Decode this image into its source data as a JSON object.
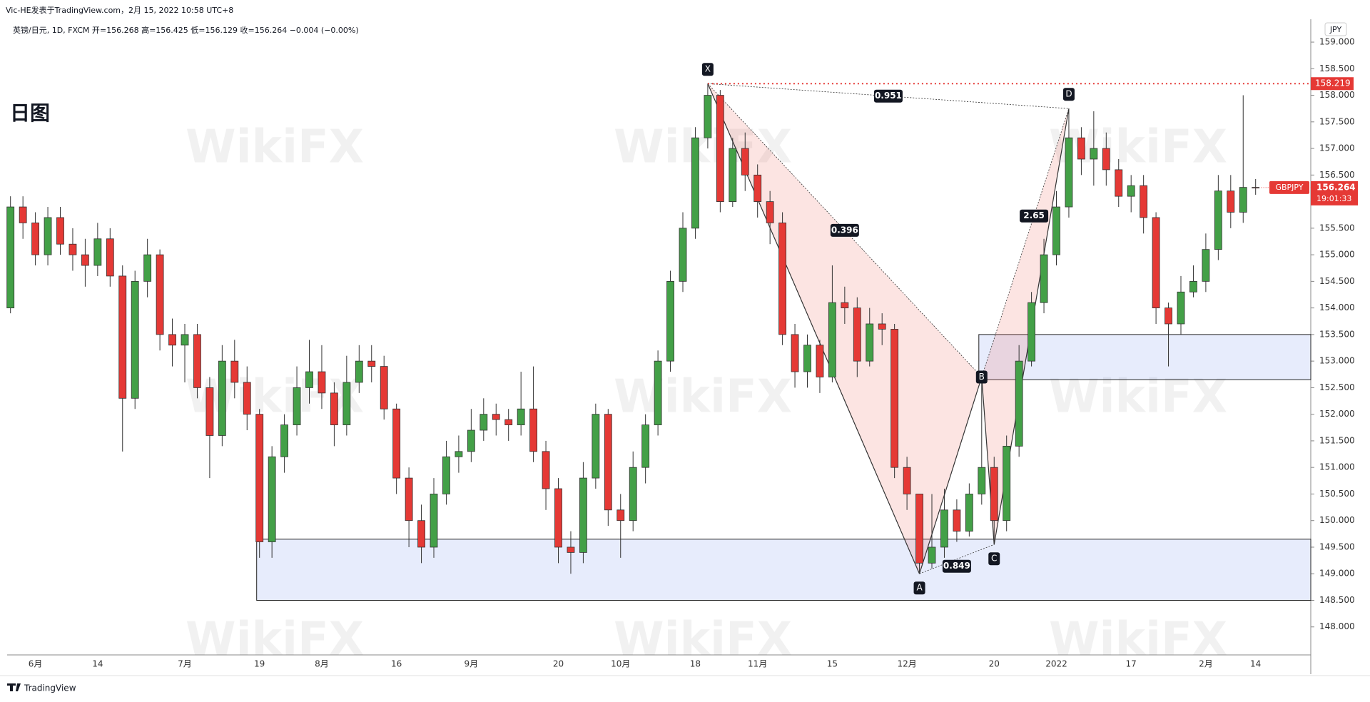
{
  "header": {
    "author": "Vic-HE发表于TradingView.com，2月 15, 2022 10:58 UTC+8",
    "legend": "英镑/日元, 1D, FXCM  开=156.268  高=156.425  低=156.129  收=156.264  −0.004 (−0.00%)",
    "note": "日图",
    "currency": "JPY",
    "footer": "TradingView",
    "watermark": "WikiFX"
  },
  "chart_data": {
    "type": "candlestick",
    "symbol": "GBPJPY",
    "countdown": "19:01:33",
    "up_color": "#43a047",
    "down_color": "#e53935",
    "categories": [
      null,
      null,
      "6月",
      null,
      null,
      null,
      null,
      "14",
      null,
      null,
      null,
      null,
      null,
      null,
      "7月",
      null,
      null,
      null,
      null,
      null,
      "19",
      null,
      null,
      null,
      null,
      "8月",
      null,
      null,
      null,
      null,
      null,
      "16",
      null,
      null,
      null,
      null,
      null,
      "9月",
      null,
      null,
      null,
      null,
      null,
      null,
      "20",
      null,
      null,
      null,
      null,
      "10月",
      null,
      null,
      null,
      null,
      null,
      "18",
      null,
      null,
      null,
      null,
      "11月",
      null,
      null,
      null,
      null,
      null,
      "15",
      null,
      null,
      null,
      null,
      null,
      "12月",
      null,
      null,
      null,
      null,
      null,
      null,
      "20",
      null,
      null,
      null,
      null,
      "2022",
      null,
      null,
      null,
      null,
      null,
      "17",
      null,
      null,
      null,
      null,
      null,
      "2月",
      null,
      null,
      null,
      "14"
    ],
    "open": [
      154.0,
      155.9,
      155.6,
      155.0,
      155.7,
      155.2,
      155.0,
      154.8,
      155.3,
      154.6,
      152.3,
      154.5,
      155.0,
      153.5,
      153.3,
      153.5,
      152.5,
      151.6,
      153.0,
      152.6,
      152.0,
      149.6,
      151.2,
      151.8,
      152.5,
      152.8,
      152.4,
      151.8,
      152.6,
      153.0,
      152.9,
      152.1,
      150.8,
      150.0,
      149.5,
      150.5,
      151.2,
      151.3,
      151.7,
      152.0,
      151.9,
      151.8,
      152.1,
      151.3,
      150.6,
      149.5,
      149.4,
      150.8,
      152.0,
      150.2,
      150.0,
      151.0,
      151.8,
      153.0,
      154.5,
      155.5,
      157.2,
      158.0,
      156.0,
      157.0,
      156.5,
      156.0,
      155.6,
      153.5,
      152.8,
      153.3,
      152.7,
      154.1,
      154.0,
      153.0,
      153.7,
      153.6,
      151.0,
      150.5,
      149.2,
      149.5,
      150.2,
      149.8,
      150.5,
      151.0,
      150.0,
      151.4,
      153.0,
      154.1,
      155.0,
      155.9,
      157.2,
      156.8,
      157.0,
      156.6,
      156.1,
      156.3,
      155.7,
      154.0,
      153.7,
      154.3,
      154.5,
      155.1,
      156.2,
      155.8,
      156.268
    ],
    "high": [
      156.1,
      156.1,
      155.8,
      155.9,
      155.9,
      155.5,
      155.3,
      155.6,
      155.5,
      154.8,
      154.7,
      155.3,
      155.1,
      153.8,
      153.7,
      153.7,
      152.7,
      153.3,
      153.4,
      152.9,
      152.1,
      151.4,
      152.0,
      152.9,
      153.4,
      153.3,
      152.6,
      153.1,
      153.3,
      153.3,
      153.1,
      152.2,
      151.0,
      150.3,
      150.8,
      151.5,
      151.6,
      152.1,
      152.3,
      152.2,
      152.1,
      152.8,
      152.9,
      151.5,
      150.8,
      149.8,
      151.1,
      152.2,
      152.1,
      150.5,
      151.3,
      152.0,
      153.2,
      154.7,
      155.8,
      157.4,
      158.219,
      158.1,
      157.2,
      157.3,
      156.7,
      156.2,
      155.8,
      153.7,
      153.5,
      153.4,
      154.8,
      154.4,
      154.2,
      154.0,
      153.9,
      153.7,
      151.2,
      150.5,
      150.5,
      150.6,
      150.4,
      150.7,
      152.7,
      151.2,
      151.6,
      153.3,
      154.3,
      155.3,
      156.2,
      157.75,
      157.4,
      157.7,
      157.3,
      156.8,
      156.5,
      156.5,
      155.8,
      154.1,
      154.6,
      154.8,
      155.4,
      156.5,
      156.5,
      158.0,
      156.425
    ],
    "low": [
      153.9,
      155.3,
      154.8,
      154.8,
      155.0,
      154.7,
      154.4,
      154.6,
      154.4,
      151.3,
      152.1,
      154.2,
      153.2,
      152.9,
      152.6,
      152.3,
      150.8,
      151.4,
      152.3,
      151.7,
      149.3,
      149.3,
      150.9,
      151.6,
      152.2,
      152.1,
      151.4,
      151.6,
      152.4,
      152.6,
      151.9,
      150.5,
      149.5,
      149.2,
      149.3,
      150.3,
      150.9,
      151.1,
      151.5,
      151.6,
      151.5,
      151.6,
      151.1,
      150.2,
      149.2,
      149.0,
      149.2,
      150.6,
      149.9,
      149.3,
      149.8,
      150.7,
      151.6,
      152.8,
      154.3,
      155.3,
      157.0,
      155.8,
      155.9,
      156.2,
      155.7,
      155.2,
      153.3,
      152.5,
      152.5,
      152.4,
      152.6,
      153.7,
      152.7,
      152.9,
      153.3,
      150.8,
      150.2,
      149.0,
      149.1,
      149.3,
      149.6,
      149.7,
      150.3,
      149.55,
      149.8,
      151.2,
      152.9,
      153.9,
      154.8,
      155.7,
      156.5,
      156.3,
      156.3,
      155.9,
      155.8,
      155.4,
      153.7,
      152.9,
      153.5,
      154.2,
      154.3,
      154.9,
      155.5,
      155.6,
      156.129
    ],
    "close": [
      155.9,
      155.6,
      155.0,
      155.7,
      155.2,
      155.0,
      154.8,
      155.3,
      154.6,
      152.3,
      154.5,
      155.0,
      153.5,
      153.3,
      153.5,
      152.5,
      151.6,
      153.0,
      152.6,
      152.0,
      149.6,
      151.2,
      151.8,
      152.5,
      152.8,
      152.4,
      151.8,
      152.6,
      153.0,
      152.9,
      152.1,
      150.8,
      150.0,
      149.5,
      150.5,
      151.2,
      151.3,
      151.7,
      152.0,
      151.9,
      151.8,
      152.1,
      151.3,
      150.6,
      149.5,
      149.4,
      150.8,
      152.0,
      150.2,
      150.0,
      151.0,
      151.8,
      153.0,
      154.5,
      155.5,
      157.2,
      158.0,
      156.0,
      157.0,
      156.5,
      156.0,
      155.6,
      153.5,
      152.8,
      153.3,
      152.7,
      154.1,
      154.0,
      153.0,
      153.7,
      153.6,
      151.0,
      150.5,
      149.2,
      149.5,
      150.2,
      149.8,
      150.5,
      151.0,
      150.0,
      151.4,
      153.0,
      154.1,
      155.0,
      155.9,
      157.2,
      156.8,
      157.0,
      156.6,
      156.1,
      156.3,
      155.7,
      154.0,
      153.7,
      154.3,
      154.5,
      155.1,
      156.2,
      155.8,
      156.268,
      156.264
    ],
    "ylim": [
      147.5,
      159.43
    ],
    "yticks": [
      {
        "value": 148,
        "label": "148.000"
      },
      {
        "value": 148.5,
        "label": "148.500"
      },
      {
        "value": 149,
        "label": "149.000"
      },
      {
        "value": 149.5,
        "label": "149.500"
      },
      {
        "value": 150,
        "label": "150.000"
      },
      {
        "value": 150.5,
        "label": "150.500"
      },
      {
        "value": 151,
        "label": "151.000"
      },
      {
        "value": 151.5,
        "label": "151.500"
      },
      {
        "value": 152,
        "label": "152.000"
      },
      {
        "value": 152.5,
        "label": "152.500"
      },
      {
        "value": 153,
        "label": "153.000"
      },
      {
        "value": 153.5,
        "label": "153.500"
      },
      {
        "value": 154,
        "label": "154.000"
      },
      {
        "value": 154.5,
        "label": "154.500"
      },
      {
        "value": 155,
        "label": "155.000"
      },
      {
        "value": 155.5,
        "label": "155.500"
      },
      {
        "value": 156,
        "label": "156.000"
      },
      {
        "value": 156.5,
        "label": "156.500"
      },
      {
        "value": 157,
        "label": "157.000"
      },
      {
        "value": 157.5,
        "label": "157.500"
      },
      {
        "value": 158,
        "label": "158.000"
      },
      {
        "value": 158.5,
        "label": "158.500"
      },
      {
        "value": 159,
        "label": "159.000"
      }
    ],
    "last_price": {
      "value": 156.264,
      "label": "156.264"
    },
    "high_line": {
      "value": 158.219,
      "label": "158.219"
    },
    "zones": [
      {
        "start": 20,
        "top": 149.65,
        "bottom": 148.5
      },
      {
        "start": 78,
        "top": 153.5,
        "bottom": 152.65
      }
    ],
    "pattern": {
      "points": [
        {
          "label": "X",
          "index": 56,
          "price": 158.219
        },
        {
          "label": "A",
          "index": 73,
          "price": 149.0
        },
        {
          "label": "B",
          "index": 78,
          "price": 152.7
        },
        {
          "label": "C",
          "index": 79,
          "price": 149.55
        },
        {
          "label": "D",
          "index": 85,
          "price": 157.75
        }
      ],
      "ratios": [
        0.396,
        0.951,
        2.65,
        0.849
      ]
    }
  }
}
